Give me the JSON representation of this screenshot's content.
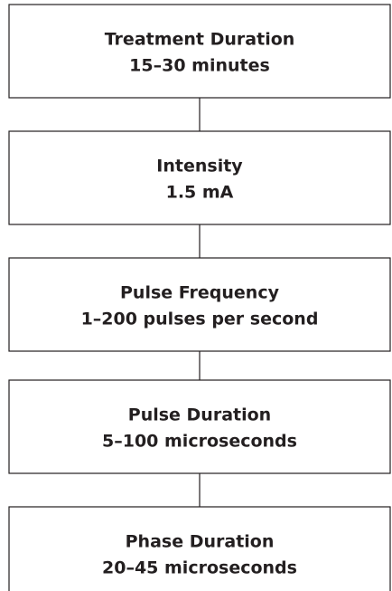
{
  "nodes": [
    {
      "title": "Treatment Duration",
      "detail": "15–30 minutes"
    },
    {
      "title": "Intensity",
      "detail": "1.5 mA"
    },
    {
      "title": "Pulse Frequency",
      "detail": "1–200 pulses per second"
    },
    {
      "title": "Pulse Duration",
      "detail": "5–100 microseconds"
    },
    {
      "title": "Phase Duration",
      "detail": "20–45 microseconds"
    }
  ]
}
